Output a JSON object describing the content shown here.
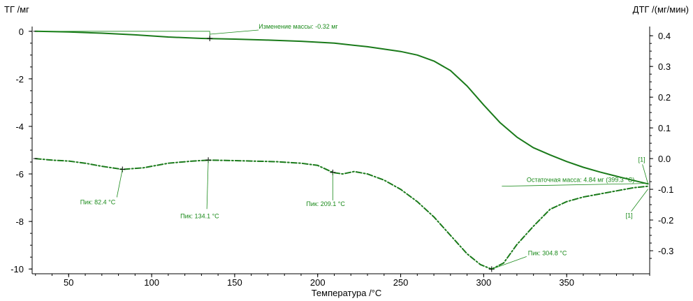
{
  "chart_data": {
    "type": "line",
    "xlabel": "Температура /°C",
    "ylabel_left": "ТГ /мг",
    "ylabel_right": "ДТГ /(мг/мин)",
    "xlim": [
      28,
      400
    ],
    "ylim_left": [
      -10.2,
      0.2
    ],
    "ylim_right": [
      -0.375,
      0.43
    ],
    "grid": false,
    "line_color": "#1a7a1a",
    "x_ticks": [
      50,
      100,
      150,
      200,
      250,
      300,
      350
    ],
    "x_tick_labels": [
      "50",
      "100",
      "150",
      "200",
      "250",
      "300",
      "350"
    ],
    "y_left_ticks": [
      0,
      -2,
      -4,
      -6,
      -8,
      -10
    ],
    "y_left_tick_labels": [
      "0",
      "-2",
      "-4",
      "-6",
      "-8",
      "-10"
    ],
    "y_right_ticks": [
      0.4,
      0.3,
      0.2,
      0.1,
      0.0,
      -0.1,
      -0.2,
      -0.3
    ],
    "y_right_tick_labels": [
      "0.4",
      "0.3",
      "0.2",
      "0.1",
      "0.0",
      "-0.1",
      "-0.2",
      "-0.3"
    ],
    "series": [
      {
        "style": "solid",
        "axis": "left",
        "x": [
          30,
          50,
          70,
          90,
          110,
          130,
          150,
          170,
          190,
          210,
          230,
          250,
          260,
          270,
          280,
          290,
          300,
          310,
          320,
          330,
          340,
          350,
          360,
          370,
          380,
          390,
          399
        ],
        "y": [
          0,
          -0.03,
          -0.08,
          -0.15,
          -0.24,
          -0.3,
          -0.33,
          -0.37,
          -0.42,
          -0.5,
          -0.65,
          -0.85,
          -1.0,
          -1.25,
          -1.65,
          -2.3,
          -3.1,
          -3.85,
          -4.45,
          -4.9,
          -5.2,
          -5.48,
          -5.72,
          -5.92,
          -6.1,
          -6.27,
          -6.42
        ]
      },
      {
        "style": "dashdot",
        "axis": "right",
        "x": [
          30,
          40,
          50,
          60,
          70,
          82.4,
          95,
          110,
          125,
          134.1,
          145,
          160,
          175,
          190,
          200,
          209.1,
          215,
          222,
          230,
          240,
          250,
          260,
          270,
          280,
          290,
          298,
          304.8,
          312,
          320,
          330,
          340,
          350,
          360,
          370,
          380,
          390,
          399
        ],
        "y": [
          0.0,
          -0.005,
          -0.008,
          -0.015,
          -0.025,
          -0.035,
          -0.03,
          -0.015,
          -0.008,
          -0.005,
          -0.006,
          -0.008,
          -0.01,
          -0.015,
          -0.022,
          -0.045,
          -0.05,
          -0.042,
          -0.05,
          -0.07,
          -0.1,
          -0.14,
          -0.19,
          -0.25,
          -0.31,
          -0.345,
          -0.36,
          -0.34,
          -0.28,
          -0.22,
          -0.165,
          -0.14,
          -0.125,
          -0.115,
          -0.105,
          -0.095,
          -0.09
        ]
      }
    ],
    "annotations": [
      {
        "text": "Изменение массы: -0.32 мг",
        "x": 135,
        "y_axis": "left",
        "y": -0.3
      },
      {
        "text": "Пик: 82.4 °C",
        "x": 82.4,
        "y_axis": "right",
        "y": -0.035
      },
      {
        "text": "Пик: 134.1 °C",
        "x": 134.1,
        "y_axis": "right",
        "y": -0.005
      },
      {
        "text": "Пик: 209.1 °C",
        "x": 209.1,
        "y_axis": "right",
        "y": -0.045
      },
      {
        "text": "Пик: 304.8 °C",
        "x": 304.8,
        "y_axis": "right",
        "y": -0.36
      },
      {
        "text": "Остаточная масса: 4.84 мг (399.3 °C)",
        "x": 399.3,
        "y_axis": "left",
        "y": -6.4
      },
      {
        "text": "[1]",
        "x": 399,
        "y_axis": "left",
        "y": -6.42
      },
      {
        "text": "[1]",
        "x": 399,
        "y_axis": "right",
        "y": -0.09
      }
    ]
  }
}
